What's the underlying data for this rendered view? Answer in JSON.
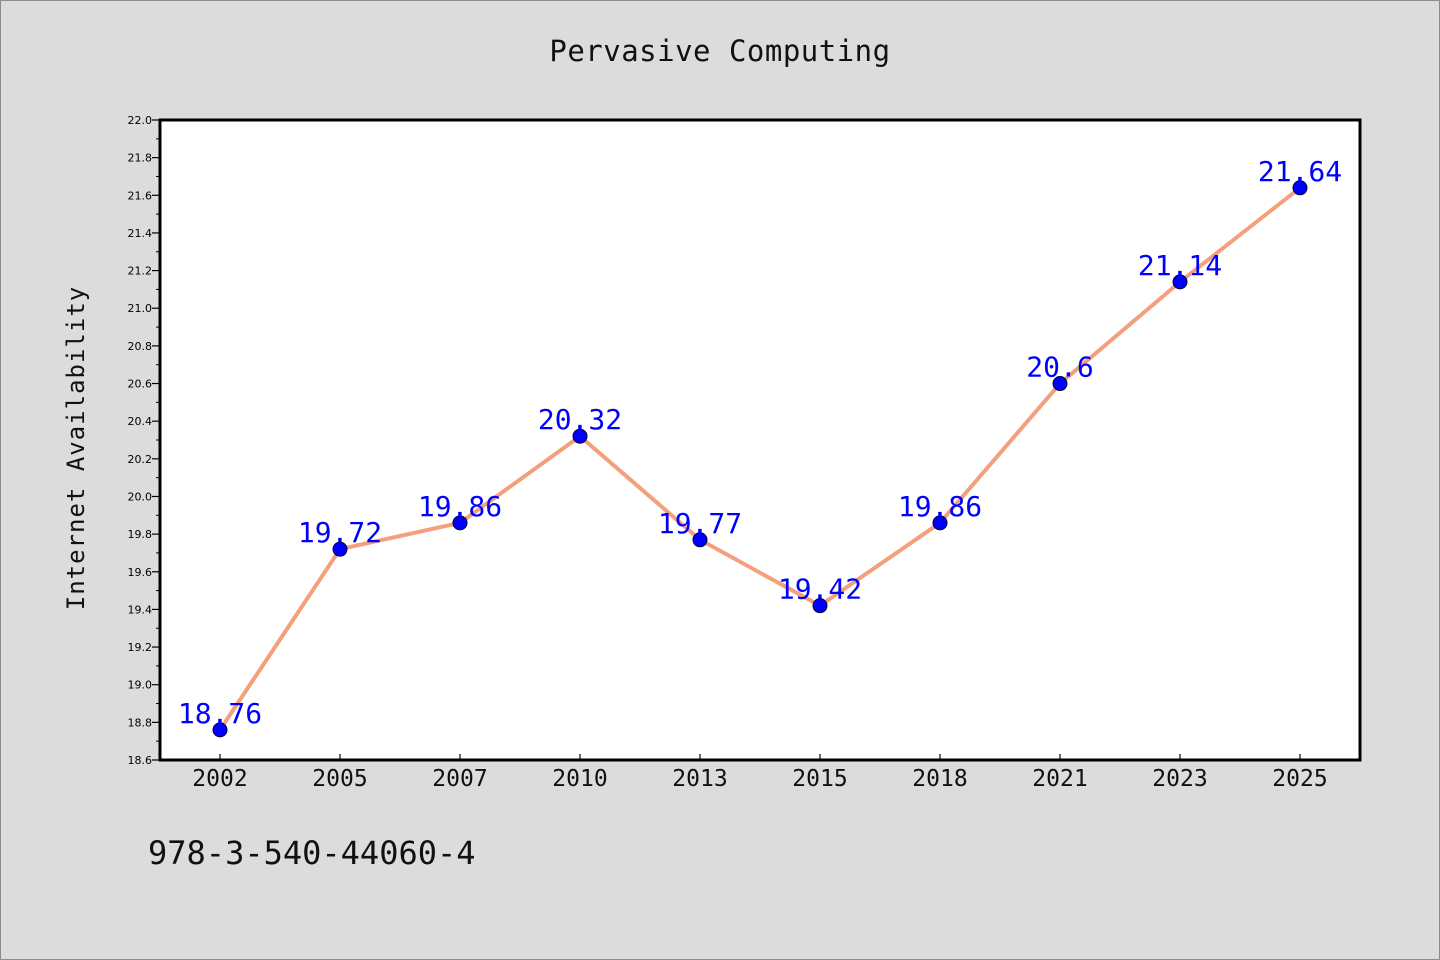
{
  "chart_data": {
    "type": "line",
    "title": "Pervasive Computing",
    "xlabel": "",
    "ylabel": "Internet Availability",
    "categories": [
      "2002",
      "2005",
      "2007",
      "2010",
      "2013",
      "2015",
      "2018",
      "2021",
      "2023",
      "2025"
    ],
    "series": [
      {
        "values": [
          18.76,
          19.72,
          19.86,
          20.32,
          19.77,
          19.42,
          19.86,
          20.6,
          21.14,
          21.64
        ]
      }
    ],
    "data_labels": [
      "18.76",
      "19.72",
      "19.86",
      "20.32",
      "19.77",
      "19.42",
      "19.86",
      "20.6",
      "21.14",
      "21.64"
    ],
    "ylim": [
      18.6,
      22.0
    ],
    "y_ticks": [
      "18.6",
      "18.8",
      "19.0",
      "19.2",
      "19.4",
      "19.6",
      "19.8",
      "20.0",
      "20.2",
      "20.4",
      "20.6",
      "20.8",
      "21.0",
      "21.2",
      "21.4",
      "21.6",
      "21.8",
      "22.0"
    ],
    "grid": false,
    "legend": "none",
    "colors": {
      "line": "#f4a07c",
      "marker": "#0000ff",
      "label": "#0000ff",
      "page_background": "#dcdcdc",
      "plot_background": "#ffffff"
    }
  },
  "footer": {
    "identifier": "978-3-540-44060-4"
  }
}
